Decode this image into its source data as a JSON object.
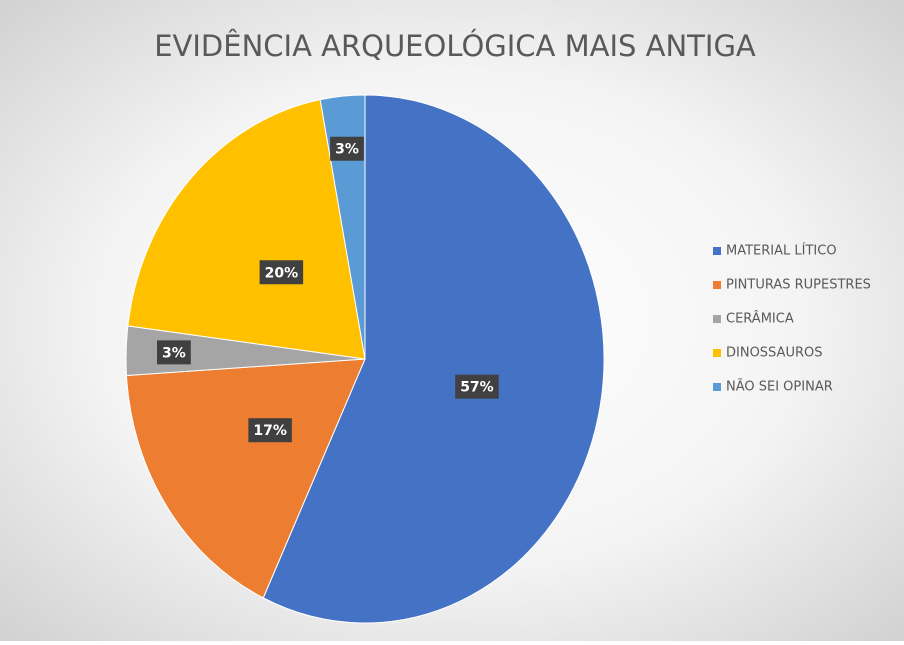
{
  "chart_data": {
    "type": "pie",
    "title": "EVIDÊNCIA ARQUEOLÓGICA MAIS ANTIGA",
    "categories": [
      "MATERIAL LÍTICO",
      "PINTURAS RUPESTRES",
      "CERÂMICA",
      "DINOSSAUROS",
      "NÃO SEI OPINAR"
    ],
    "values": [
      57,
      17,
      3,
      20,
      3
    ],
    "value_labels": [
      "57%",
      "17%",
      "3%",
      "20%",
      "3%"
    ],
    "colors": [
      "#4472c4",
      "#ed7d31",
      "#a5a5a5",
      "#ffc000",
      "#5b9bd5"
    ],
    "legend": "right"
  }
}
